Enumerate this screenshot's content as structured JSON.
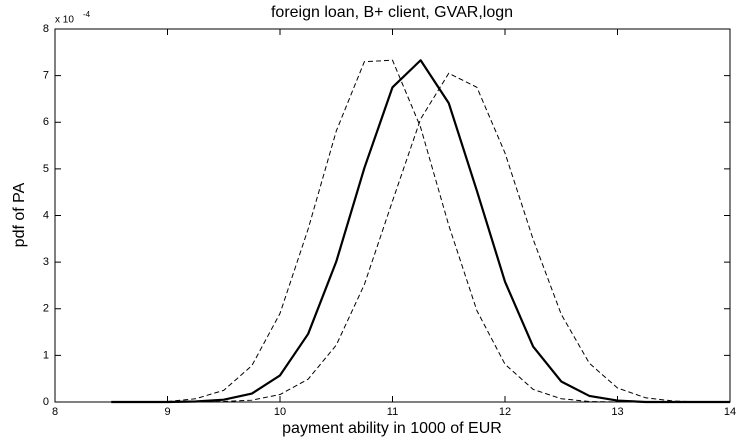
{
  "chart_data": {
    "type": "line",
    "title": "foreign loan, B+ client, GVAR,logn",
    "x_label": "payment ability in 1000 of EUR",
    "y_label": "pdf of PA",
    "y_multiplier": {
      "base": "x 10",
      "exponent": "-4"
    },
    "x": [
      8.5,
      8.75,
      9,
      9.25,
      9.5,
      9.75,
      10,
      10.25,
      10.5,
      10.75,
      11,
      11.25,
      11.5,
      11.75,
      12,
      12.25,
      12.5,
      12.75,
      13,
      13.25,
      13.5,
      13.75,
      14
    ],
    "series": [
      {
        "color": "#000000",
        "linestyle": "dashed",
        "values": [
          0,
          0,
          0.01,
          0.07,
          0.25,
          0.78,
          1.9,
          3.71,
          5.81,
          7.3,
          7.33,
          5.89,
          3.79,
          1.96,
          0.81,
          0.27,
          0.07,
          0.01,
          0,
          0,
          0,
          0,
          0
        ]
      },
      {
        "color": "#000000",
        "linestyle": "solid",
        "values": [
          0,
          0,
          0,
          0.01,
          0.05,
          0.18,
          0.57,
          1.46,
          3.01,
          5.02,
          6.75,
          7.33,
          6.41,
          4.53,
          2.58,
          1.19,
          0.44,
          0.13,
          0.03,
          0,
          0,
          0,
          0
        ]
      },
      {
        "color": "#000000",
        "linestyle": "dashed",
        "values": [
          0,
          0,
          0,
          0,
          0.01,
          0.04,
          0.16,
          0.49,
          1.22,
          2.52,
          4.31,
          6.07,
          7.05,
          6.75,
          5.34,
          3.49,
          1.88,
          0.83,
          0.3,
          0.09,
          0.02,
          0,
          0
        ]
      }
    ],
    "xlim": [
      8,
      14
    ],
    "xticks": [
      8,
      9,
      10,
      11,
      12,
      13,
      14
    ],
    "ylim": [
      0,
      8
    ],
    "yticks": [
      0,
      1,
      2,
      3,
      4,
      5,
      6,
      7,
      8
    ],
    "grid": false
  }
}
